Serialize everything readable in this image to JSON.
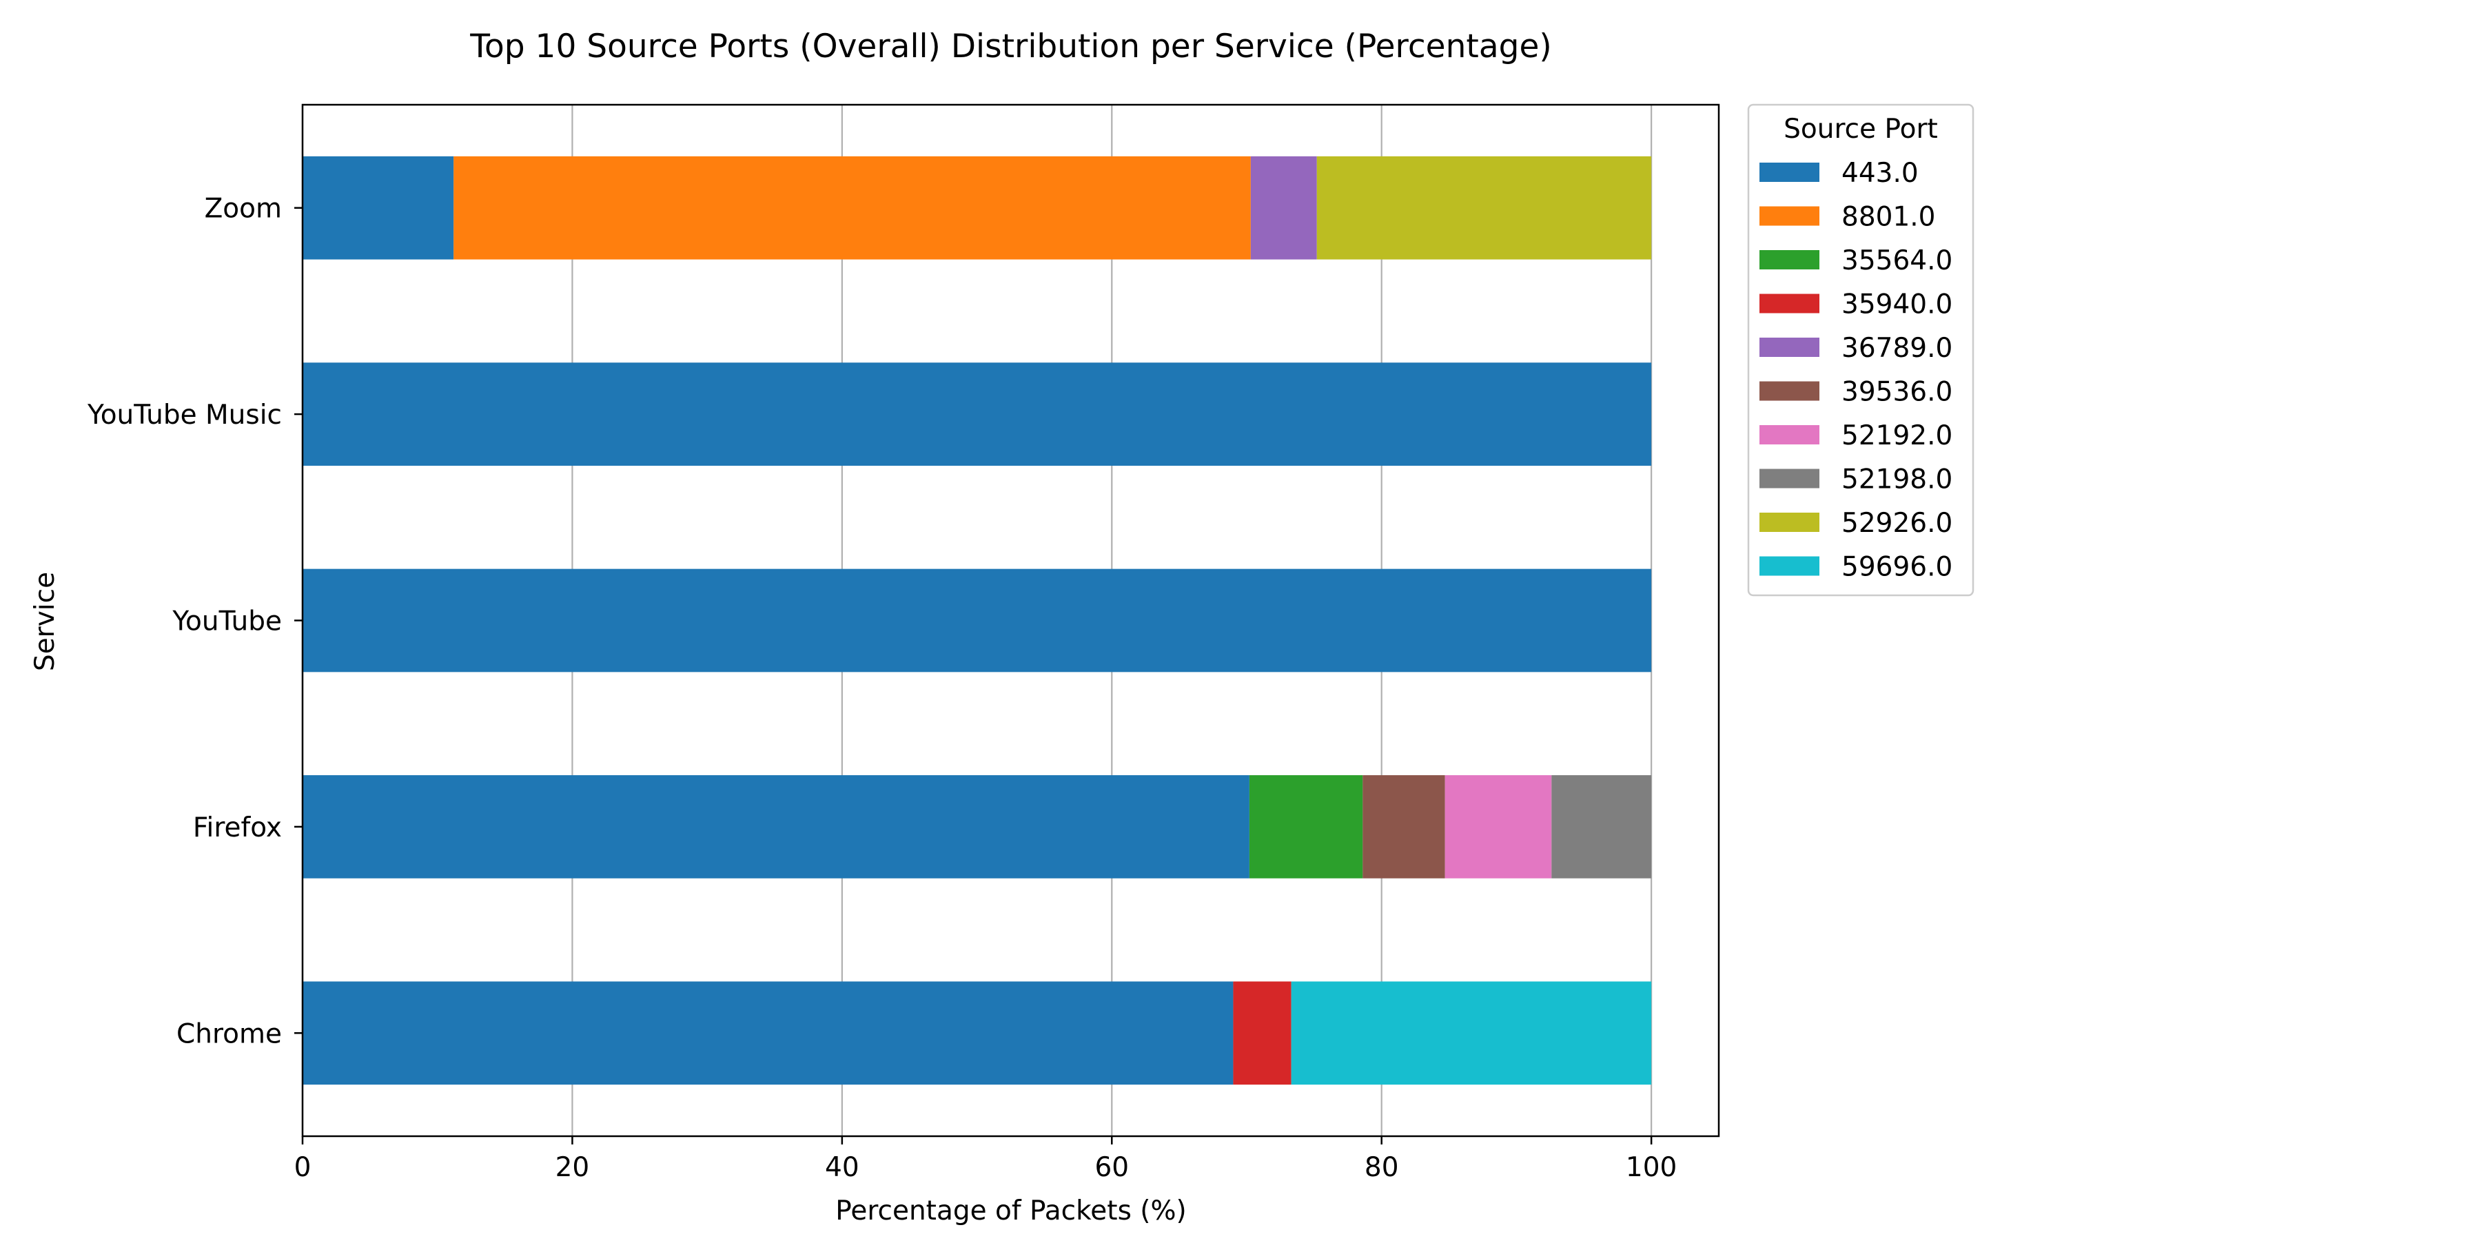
{
  "chart_data": {
    "type": "bar",
    "orientation": "horizontal",
    "stacked": true,
    "title": "Top 10 Source Ports (Overall) Distribution per Service (Percentage)",
    "xlabel": "Percentage of Packets (%)",
    "ylabel": "Service",
    "xlim": [
      0,
      105
    ],
    "xticks": [
      0,
      20,
      40,
      60,
      80,
      100
    ],
    "grid": "x",
    "categories": [
      "Chrome",
      "Firefox",
      "YouTube",
      "YouTube Music",
      "Zoom"
    ],
    "legend": {
      "title": "Source Port",
      "placement": "outside-top-right"
    },
    "series": [
      {
        "name": "443.0",
        "color": "#1f77b4",
        "values": [
          69.0,
          70.2,
          100,
          100,
          11.2
        ]
      },
      {
        "name": "8801.0",
        "color": "#ff7f0e",
        "values": [
          0,
          0,
          0,
          0,
          59.1
        ]
      },
      {
        "name": "35564.0",
        "color": "#2ca02c",
        "values": [
          0,
          8.4,
          0,
          0,
          0
        ]
      },
      {
        "name": "35940.0",
        "color": "#d62728",
        "values": [
          4.3,
          0,
          0,
          0,
          0
        ]
      },
      {
        "name": "36789.0",
        "color": "#9467bd",
        "values": [
          0,
          0,
          0,
          0,
          4.9
        ]
      },
      {
        "name": "39536.0",
        "color": "#8c564b",
        "values": [
          0,
          6.1,
          0,
          0,
          0
        ]
      },
      {
        "name": "52192.0",
        "color": "#e377c2",
        "values": [
          0,
          7.9,
          0,
          0,
          0
        ]
      },
      {
        "name": "52198.0",
        "color": "#7f7f7f",
        "values": [
          0,
          7.4,
          0,
          0,
          0
        ]
      },
      {
        "name": "52926.0",
        "color": "#bcbd22",
        "values": [
          0,
          0,
          0,
          0,
          24.8
        ]
      },
      {
        "name": "59696.0",
        "color": "#17becf",
        "values": [
          26.7,
          0,
          0,
          0,
          0
        ]
      }
    ]
  }
}
